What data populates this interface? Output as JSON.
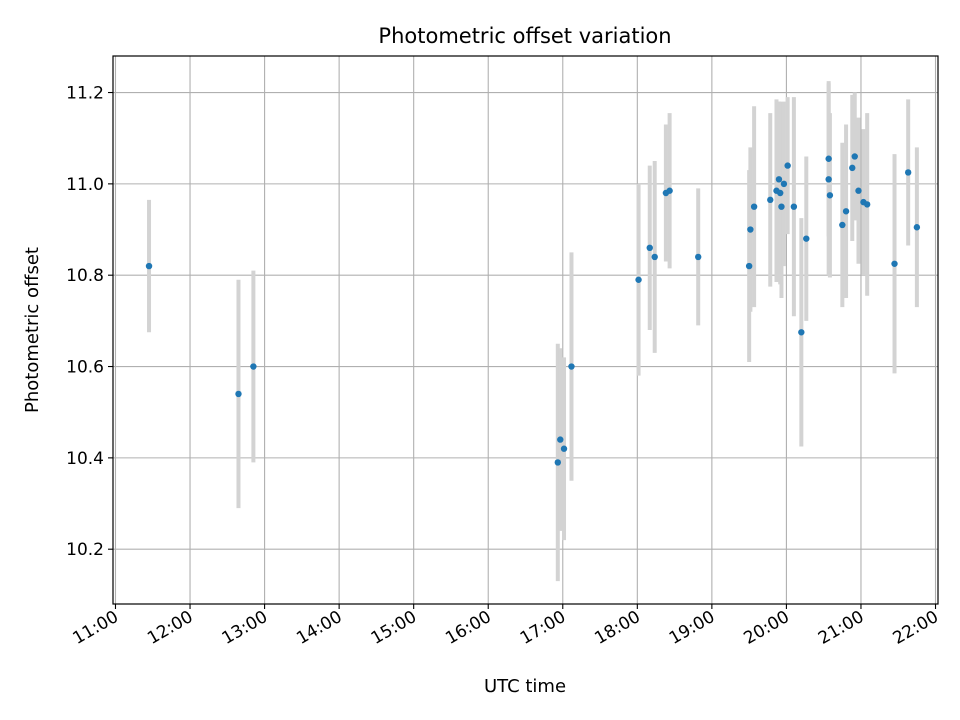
{
  "chart_data": {
    "type": "scatter",
    "title": "Photometric offset variation",
    "xlabel": "UTC time",
    "ylabel": "Photometric offset",
    "x_ticks": [
      "11:00",
      "12:00",
      "13:00",
      "14:00",
      "15:00",
      "16:00",
      "17:00",
      "18:00",
      "19:00",
      "20:00",
      "21:00",
      "22:00"
    ],
    "y_ticks": [
      "10.2",
      "10.4",
      "10.6",
      "10.8",
      "11.0",
      "11.2"
    ],
    "xlim": [
      "10:58",
      "22:02"
    ],
    "ylim": [
      10.08,
      11.28
    ],
    "grid": true,
    "colors": {
      "point": "#1f77b4",
      "errorbar": "#d3d3d3",
      "grid": "#b0b0b0"
    },
    "points": [
      {
        "x": "11:27",
        "y": 10.82,
        "yerr": 0.145
      },
      {
        "x": "12:39",
        "y": 10.54,
        "yerr": 0.25
      },
      {
        "x": "12:51",
        "y": 10.6,
        "yerr": 0.21
      },
      {
        "x": "16:56",
        "y": 10.39,
        "yerr": 0.26
      },
      {
        "x": "16:58",
        "y": 10.44,
        "yerr": 0.2
      },
      {
        "x": "17:01",
        "y": 10.42,
        "yerr": 0.2
      },
      {
        "x": "17:07",
        "y": 10.6,
        "yerr": 0.25
      },
      {
        "x": "18:01",
        "y": 10.79,
        "yerr": 0.21
      },
      {
        "x": "18:10",
        "y": 10.86,
        "yerr": 0.18
      },
      {
        "x": "18:14",
        "y": 10.84,
        "yerr": 0.21
      },
      {
        "x": "18:23",
        "y": 10.98,
        "yerr": 0.15
      },
      {
        "x": "18:26",
        "y": 10.985,
        "yerr": 0.17
      },
      {
        "x": "18:49",
        "y": 10.84,
        "yerr": 0.15
      },
      {
        "x": "19:30",
        "y": 10.82,
        "yerr": 0.21
      },
      {
        "x": "19:31",
        "y": 10.9,
        "yerr": 0.18
      },
      {
        "x": "19:34",
        "y": 10.95,
        "yerr": 0.22
      },
      {
        "x": "19:47",
        "y": 10.965,
        "yerr": 0.19
      },
      {
        "x": "19:52",
        "y": 10.985,
        "yerr": 0.2
      },
      {
        "x": "19:54",
        "y": 11.01,
        "yerr": 0.17
      },
      {
        "x": "19:55",
        "y": 10.98,
        "yerr": 0.2
      },
      {
        "x": "19:56",
        "y": 10.95,
        "yerr": 0.2
      },
      {
        "x": "19:58",
        "y": 11.0,
        "yerr": 0.18
      },
      {
        "x": "20:01",
        "y": 11.04,
        "yerr": 0.15
      },
      {
        "x": "20:06",
        "y": 10.95,
        "yerr": 0.24
      },
      {
        "x": "20:12",
        "y": 10.675,
        "yerr": 0.25
      },
      {
        "x": "20:16",
        "y": 10.88,
        "yerr": 0.18
      },
      {
        "x": "20:34",
        "y": 11.055,
        "yerr": 0.17
      },
      {
        "x": "20:34",
        "y": 11.01,
        "yerr": 0.21
      },
      {
        "x": "20:35",
        "y": 10.975,
        "yerr": 0.18
      },
      {
        "x": "20:45",
        "y": 10.91,
        "yerr": 0.18
      },
      {
        "x": "20:48",
        "y": 10.94,
        "yerr": 0.19
      },
      {
        "x": "20:53",
        "y": 11.035,
        "yerr": 0.16
      },
      {
        "x": "20:55",
        "y": 11.06,
        "yerr": 0.14
      },
      {
        "x": "20:58",
        "y": 10.985,
        "yerr": 0.16
      },
      {
        "x": "21:02",
        "y": 10.96,
        "yerr": 0.16
      },
      {
        "x": "21:05",
        "y": 10.955,
        "yerr": 0.2
      },
      {
        "x": "21:27",
        "y": 10.825,
        "yerr": 0.24
      },
      {
        "x": "21:38",
        "y": 11.025,
        "yerr": 0.16
      },
      {
        "x": "21:45",
        "y": 10.905,
        "yerr": 0.175
      }
    ]
  }
}
